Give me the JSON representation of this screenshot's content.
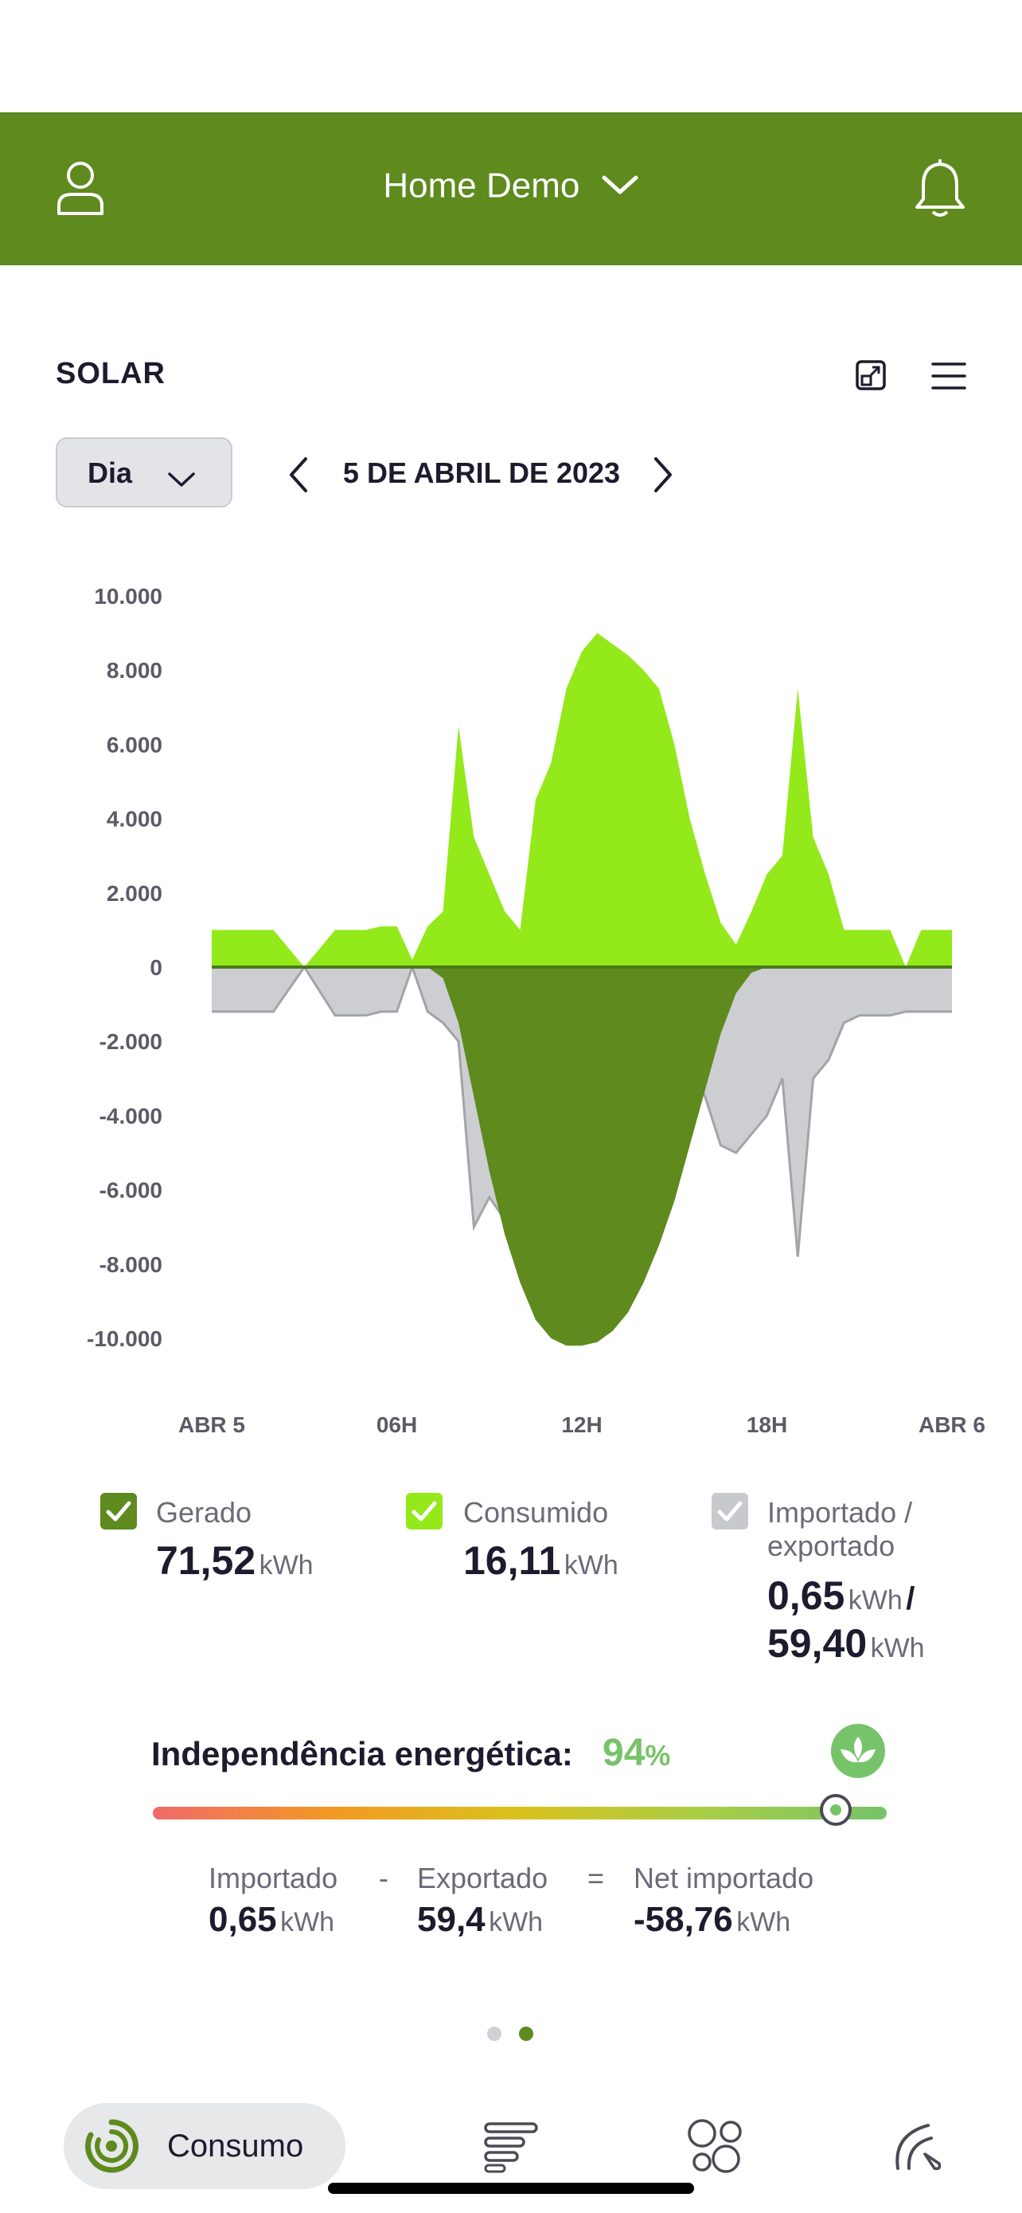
{
  "header": {
    "title": "Home Demo"
  },
  "section": {
    "title": "SOLAR"
  },
  "period": {
    "selected": "Dia"
  },
  "date": {
    "label": "5 DE ABRIL DE 2023"
  },
  "chart_data": {
    "type": "area",
    "y_ticks": [
      "10.000",
      "8.000",
      "6.000",
      "4.000",
      "2.000",
      "0",
      "-2.000",
      "-4.000",
      "-6.000",
      "-8.000",
      "-10.000"
    ],
    "ylim": [
      -10000,
      10000
    ],
    "x_ticks": [
      "ABR 5",
      "06H",
      "12H",
      "18H",
      "ABR 6"
    ],
    "x": [
      0,
      1,
      2,
      3,
      4,
      5,
      5.5,
      6,
      6.5,
      7,
      7.5,
      8,
      8.5,
      9,
      9.5,
      10,
      10.5,
      11,
      11.5,
      12,
      12.5,
      13,
      13.5,
      14,
      14.5,
      15,
      15.5,
      16,
      16.5,
      17,
      17.5,
      18,
      18.5,
      19,
      19.5,
      20,
      20.5,
      21,
      21.5,
      22,
      22.5,
      23,
      24
    ],
    "series": [
      {
        "name": "Gerado",
        "color": "#5e8a1e",
        "values": [
          0,
          0,
          0,
          0,
          0,
          0,
          0,
          0,
          0,
          0,
          -300,
          -1500,
          -3500,
          -5500,
          -7200,
          -8500,
          -9500,
          -10000,
          -10200,
          -10200,
          -10100,
          -9800,
          -9300,
          -8500,
          -7500,
          -6300,
          -4800,
          -3300,
          -1800,
          -700,
          -150,
          0,
          0,
          0,
          0,
          0,
          0,
          0,
          0,
          0,
          0,
          0,
          0
        ]
      },
      {
        "name": "Consumido",
        "color": "#93e91a",
        "values": [
          1000,
          1000,
          1000,
          0,
          1000,
          1000,
          1100,
          1100,
          200,
          1100,
          1500,
          6500,
          3500,
          2500,
          1500,
          1000,
          4500,
          5500,
          7500,
          8500,
          9000,
          8700,
          8400,
          8000,
          7500,
          6000,
          4000,
          2500,
          1200,
          600,
          1500,
          2500,
          3000,
          7500,
          3500,
          2500,
          1000,
          1000,
          1000,
          1000,
          0,
          1000,
          1000
        ]
      },
      {
        "name": "Importado / exportado",
        "color": "#c8c9cd",
        "values": [
          -1200,
          -1200,
          -1200,
          0,
          -1300,
          -1300,
          -1200,
          -1200,
          0,
          -1200,
          -1500,
          -2000,
          -7000,
          -6200,
          -6800,
          -7000,
          -6000,
          -5000,
          -3300,
          -2500,
          -1500,
          -1500,
          -1500,
          -1500,
          -1700,
          -2000,
          -2500,
          -3500,
          -4800,
          -5000,
          -4500,
          -4000,
          -3000,
          -7800,
          -3000,
          -2500,
          -1500,
          -1300,
          -1300,
          -1300,
          -1200,
          -1200,
          -1200
        ]
      }
    ]
  },
  "legend": [
    {
      "name": "Gerado",
      "value": "71,52",
      "unit": "kWh",
      "color": "#5e8a1e"
    },
    {
      "name": "Consumido",
      "value": "16,11",
      "unit": "kWh",
      "color": "#93e91a"
    },
    {
      "name_line1": "Importado /",
      "name_line2": "exportado",
      "value1": "0,65",
      "unit1": "kWh",
      "sep": "/",
      "value2": "59,40",
      "unit2": "kWh",
      "color": "#c8c9cd"
    }
  ],
  "independence": {
    "label": "Independência energética:",
    "value": "94",
    "unit": "%",
    "level": 0.94
  },
  "equation": {
    "imported_label": "Importado",
    "imported_value": "0,65",
    "imported_unit": "kWh",
    "minus": "-",
    "exported_label": "Exportado",
    "exported_value": "59,4",
    "exported_unit": "kWh",
    "equals": "=",
    "net_label": "Net importado",
    "net_value": "-58,76",
    "net_unit": "kWh"
  },
  "pager": {
    "count": 2,
    "active": 2
  },
  "nav": {
    "consumo_label": "Consumo"
  },
  "icons": [
    "user-icon",
    "chevron-down-icon",
    "bell-icon",
    "expand-icon",
    "menu-icon",
    "chevron-left-icon",
    "chevron-right-icon",
    "lotus-icon",
    "consumo-icon",
    "list-icon",
    "bubbles-icon",
    "gauge-icon"
  ]
}
